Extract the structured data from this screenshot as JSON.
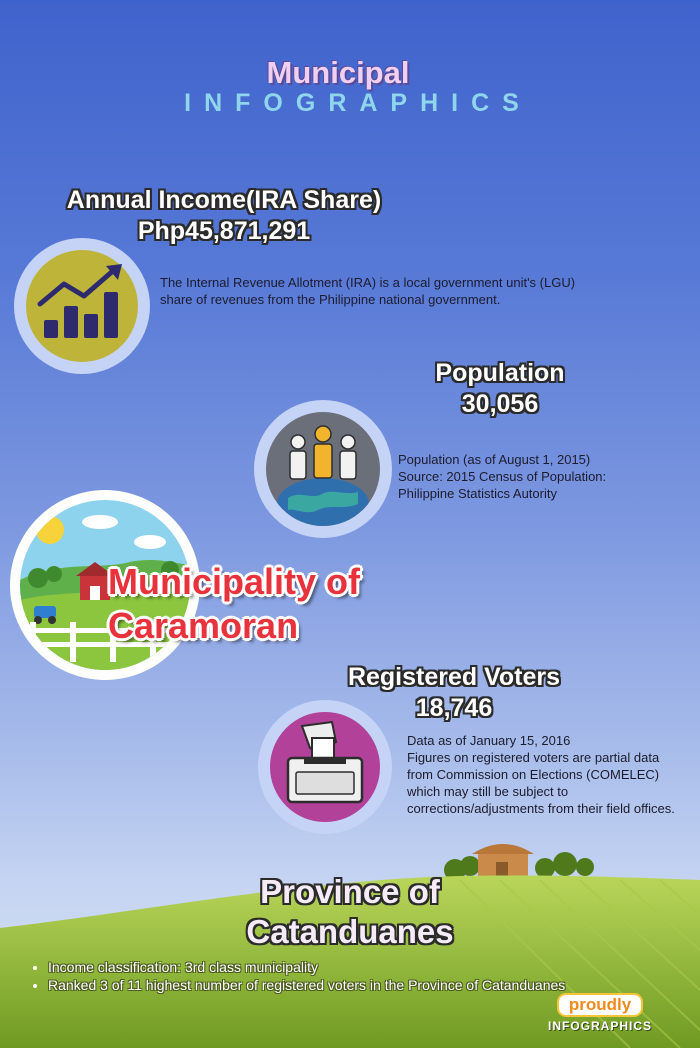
{
  "header": {
    "title": "Municipal",
    "subtitle": "INFOGRAPHICS"
  },
  "income": {
    "label": "Annual Income(IRA Share)",
    "value": "Php45,871,291",
    "description": "The Internal Revenue Allotment (IRA) is a local government unit's (LGU) share of revenues from the Philippine national government.",
    "icon": "growth-chart-icon"
  },
  "population": {
    "label": "Population",
    "value": "30,056",
    "line1": "Population (as of August 1, 2015)",
    "line2": "Source: 2015 Census of Population:",
    "line3": "Philippine Statistics Autority",
    "icon": "people-globe-icon"
  },
  "municipality": {
    "line1": "Municipality of",
    "line2": "Caramoran",
    "icon": "farm-landscape-icon"
  },
  "voters": {
    "label": "Registered Voters",
    "value": "18,746",
    "line1": "Data as of January 15, 2016",
    "line2": "Figures on registered voters are partial data from Commission on Elections (COMELEC) which may still be subject to corrections/adjustments from their field offices.",
    "icon": "ballot-box-icon"
  },
  "province": {
    "line1": "Province of",
    "line2": "Catanduanes"
  },
  "facts": [
    "Income classification: 3rd class municipality",
    "Ranked 3 of 11 highest number of registered voters in the Province of Catanduanes"
  ],
  "brand": {
    "name": "proudly",
    "tag": "INFOGRAPHICS"
  },
  "colors": {
    "accent_red": "#e8323c",
    "subtitle_cyan": "#8fd6ec",
    "field_green": "#9cc53a"
  }
}
